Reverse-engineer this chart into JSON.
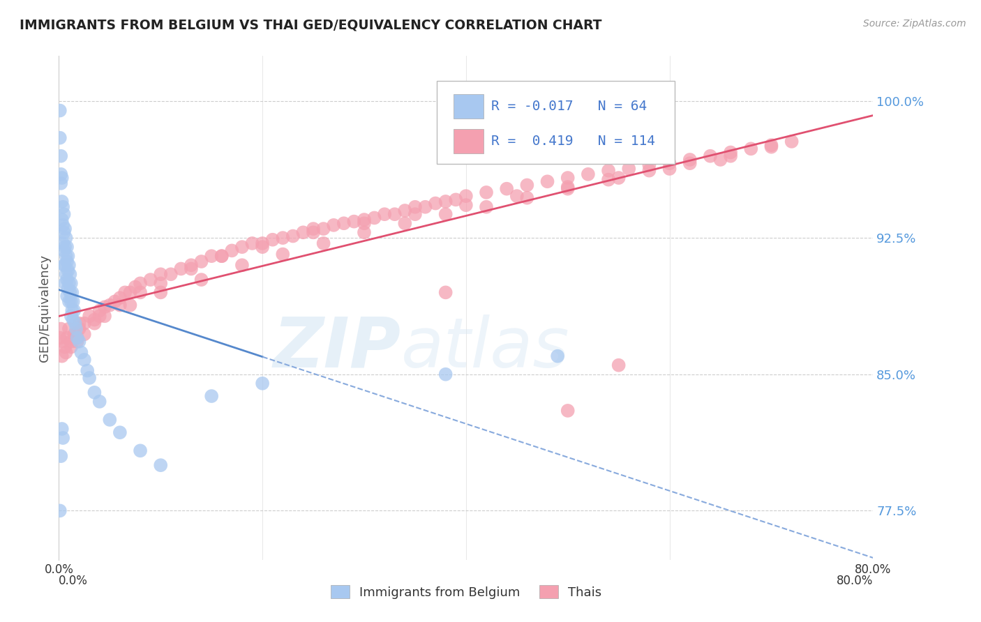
{
  "title": "IMMIGRANTS FROM BELGIUM VS THAI GED/EQUIVALENCY CORRELATION CHART",
  "source": "Source: ZipAtlas.com",
  "ylabel": "GED/Equivalency",
  "legend_label1": "Immigrants from Belgium",
  "legend_label2": "Thais",
  "R1": -0.017,
  "N1": 64,
  "R2": 0.419,
  "N2": 114,
  "xmin": 0.0,
  "xmax": 0.8,
  "ymin": 0.748,
  "ymax": 1.025,
  "yticks": [
    0.775,
    0.85,
    0.925,
    1.0
  ],
  "ytick_labels": [
    "77.5%",
    "85.0%",
    "92.5%",
    "100.0%"
  ],
  "xticks": [
    0.0,
    0.2,
    0.4,
    0.6,
    0.8
  ],
  "xtick_labels": [
    "0.0%",
    "",
    "",
    "",
    "80.0%"
  ],
  "color_blue": "#a8c8f0",
  "color_pink": "#f4a0b0",
  "trendline_blue_solid": "#5588cc",
  "trendline_blue_dashed": "#88aadd",
  "trendline_pink": "#e05070",
  "watermark_zip": "ZIP",
  "watermark_atlas": "atlas",
  "blue_x": [
    0.001,
    0.001,
    0.002,
    0.002,
    0.002,
    0.003,
    0.003,
    0.003,
    0.004,
    0.004,
    0.004,
    0.005,
    0.005,
    0.005,
    0.005,
    0.006,
    0.006,
    0.006,
    0.006,
    0.007,
    0.007,
    0.007,
    0.008,
    0.008,
    0.008,
    0.008,
    0.009,
    0.009,
    0.009,
    0.01,
    0.01,
    0.01,
    0.011,
    0.011,
    0.012,
    0.012,
    0.012,
    0.013,
    0.013,
    0.014,
    0.014,
    0.015,
    0.016,
    0.017,
    0.018,
    0.02,
    0.022,
    0.025,
    0.028,
    0.03,
    0.035,
    0.04,
    0.05,
    0.06,
    0.08,
    0.1,
    0.15,
    0.2,
    0.38,
    0.49,
    0.001,
    0.002,
    0.003,
    0.004
  ],
  "blue_y": [
    0.995,
    0.98,
    0.97,
    0.96,
    0.955,
    0.958,
    0.945,
    0.935,
    0.942,
    0.932,
    0.922,
    0.938,
    0.928,
    0.918,
    0.91,
    0.93,
    0.92,
    0.91,
    0.9,
    0.925,
    0.915,
    0.905,
    0.92,
    0.912,
    0.902,
    0.893,
    0.915,
    0.907,
    0.897,
    0.91,
    0.9,
    0.89,
    0.905,
    0.895,
    0.9,
    0.89,
    0.882,
    0.895,
    0.885,
    0.89,
    0.88,
    0.885,
    0.878,
    0.875,
    0.87,
    0.868,
    0.862,
    0.858,
    0.852,
    0.848,
    0.84,
    0.835,
    0.825,
    0.818,
    0.808,
    0.8,
    0.838,
    0.845,
    0.85,
    0.86,
    0.775,
    0.805,
    0.82,
    0.815
  ],
  "pink_x": [
    0.001,
    0.002,
    0.004,
    0.006,
    0.008,
    0.01,
    0.012,
    0.015,
    0.018,
    0.02,
    0.025,
    0.03,
    0.035,
    0.04,
    0.045,
    0.05,
    0.055,
    0.06,
    0.065,
    0.07,
    0.075,
    0.08,
    0.09,
    0.1,
    0.11,
    0.12,
    0.13,
    0.14,
    0.15,
    0.16,
    0.17,
    0.18,
    0.19,
    0.2,
    0.21,
    0.22,
    0.23,
    0.24,
    0.25,
    0.26,
    0.27,
    0.28,
    0.29,
    0.3,
    0.31,
    0.32,
    0.33,
    0.34,
    0.35,
    0.36,
    0.37,
    0.38,
    0.39,
    0.4,
    0.42,
    0.44,
    0.46,
    0.48,
    0.5,
    0.52,
    0.54,
    0.56,
    0.58,
    0.6,
    0.62,
    0.64,
    0.66,
    0.68,
    0.7,
    0.72,
    0.003,
    0.007,
    0.012,
    0.018,
    0.025,
    0.035,
    0.045,
    0.06,
    0.08,
    0.1,
    0.13,
    0.16,
    0.2,
    0.25,
    0.3,
    0.35,
    0.4,
    0.45,
    0.5,
    0.55,
    0.6,
    0.65,
    0.02,
    0.04,
    0.07,
    0.1,
    0.14,
    0.18,
    0.22,
    0.26,
    0.3,
    0.34,
    0.38,
    0.42,
    0.46,
    0.5,
    0.54,
    0.58,
    0.62,
    0.66,
    0.7,
    0.55,
    0.38,
    0.5
  ],
  "pink_y": [
    0.87,
    0.875,
    0.868,
    0.865,
    0.87,
    0.875,
    0.868,
    0.872,
    0.87,
    0.875,
    0.878,
    0.882,
    0.88,
    0.885,
    0.887,
    0.888,
    0.89,
    0.892,
    0.895,
    0.895,
    0.898,
    0.9,
    0.902,
    0.905,
    0.905,
    0.908,
    0.91,
    0.912,
    0.915,
    0.915,
    0.918,
    0.92,
    0.922,
    0.922,
    0.924,
    0.925,
    0.926,
    0.928,
    0.93,
    0.93,
    0.932,
    0.933,
    0.934,
    0.935,
    0.936,
    0.938,
    0.938,
    0.94,
    0.942,
    0.942,
    0.944,
    0.945,
    0.946,
    0.948,
    0.95,
    0.952,
    0.954,
    0.956,
    0.958,
    0.96,
    0.962,
    0.963,
    0.965,
    0.966,
    0.968,
    0.97,
    0.972,
    0.974,
    0.976,
    0.978,
    0.86,
    0.862,
    0.865,
    0.868,
    0.872,
    0.878,
    0.882,
    0.888,
    0.895,
    0.9,
    0.908,
    0.915,
    0.92,
    0.928,
    0.933,
    0.938,
    0.943,
    0.948,
    0.953,
    0.958,
    0.963,
    0.968,
    0.878,
    0.882,
    0.888,
    0.895,
    0.902,
    0.91,
    0.916,
    0.922,
    0.928,
    0.933,
    0.938,
    0.942,
    0.947,
    0.952,
    0.957,
    0.962,
    0.966,
    0.97,
    0.975,
    0.855,
    0.895,
    0.83
  ]
}
